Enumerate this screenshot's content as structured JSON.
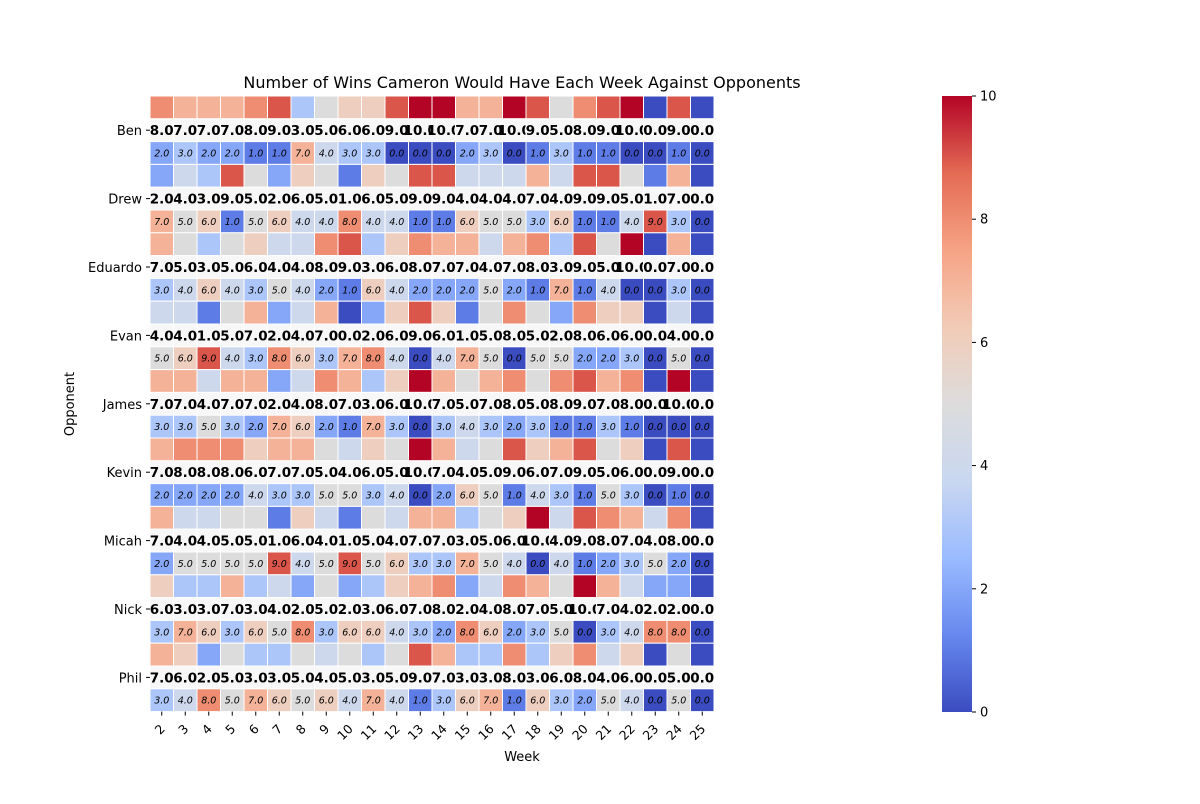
{
  "chart_data": {
    "type": "heatmap",
    "title": "Number of Wins Cameron Would Have Each Week Against Opponents",
    "xlabel": "Week",
    "ylabel": "Opponent",
    "weeks": [
      "2",
      "3",
      "4",
      "5",
      "6",
      "7",
      "8",
      "9",
      "10",
      "11",
      "12",
      "13",
      "14",
      "15",
      "16",
      "17",
      "18",
      "19",
      "20",
      "21",
      "22",
      "23",
      "24",
      "25"
    ],
    "opponents": [
      "Ben",
      "Drew",
      "Eduardo",
      "Evan",
      "James",
      "Kevin",
      "Micah",
      "Nick",
      "Phil"
    ],
    "colorbar": {
      "min": 0,
      "max": 10,
      "ticks": [
        "0",
        "2",
        "4",
        "6",
        "8",
        "10"
      ],
      "colormap": "coolwarm"
    },
    "colormap_stops": [
      "#3b4cc0",
      "#6788ee",
      "#9abbff",
      "#c9d7f0",
      "#dddcdc",
      "#f2cbb7",
      "#f6a385",
      "#e36b54",
      "#b40426"
    ],
    "wins": [
      [
        "8.0",
        "7.0",
        "7.0",
        "7.0",
        "8.0",
        "9.0",
        "3.0",
        "5.0",
        "6.0",
        "6.0",
        "9.0",
        "10.0",
        "10.0",
        "7.0",
        "7.0",
        "10.0",
        "9.0",
        "5.0",
        "8.0",
        "9.0",
        "10.0",
        "0.0",
        "9.0",
        "0.0"
      ],
      [
        "2.0",
        "4.0",
        "3.0",
        "9.0",
        "5.0",
        "2.0",
        "6.0",
        "5.0",
        "1.0",
        "6.0",
        "5.0",
        "9.0",
        "9.0",
        "4.0",
        "4.0",
        "4.0",
        "7.0",
        "4.0",
        "9.0",
        "9.0",
        "5.0",
        "1.0",
        "7.0",
        "0.0"
      ],
      [
        "7.0",
        "5.0",
        "3.0",
        "5.0",
        "6.0",
        "4.0",
        "4.0",
        "8.0",
        "9.0",
        "3.0",
        "6.0",
        "8.0",
        "7.0",
        "7.0",
        "4.0",
        "7.0",
        "8.0",
        "3.0",
        "9.0",
        "5.0",
        "10.0",
        "0.0",
        "7.0",
        "0.0"
      ],
      [
        "4.0",
        "4.0",
        "1.0",
        "5.0",
        "7.0",
        "2.0",
        "4.0",
        "7.0",
        "0.0",
        "2.0",
        "6.0",
        "9.0",
        "6.0",
        "1.0",
        "5.0",
        "8.0",
        "5.0",
        "2.0",
        "8.0",
        "6.0",
        "6.0",
        "0.0",
        "4.0",
        "0.0"
      ],
      [
        "7.0",
        "7.0",
        "4.0",
        "7.0",
        "7.0",
        "2.0",
        "4.0",
        "8.0",
        "7.0",
        "3.0",
        "6.0",
        "10.0",
        "7.0",
        "5.0",
        "7.0",
        "8.0",
        "5.0",
        "8.0",
        "9.0",
        "7.0",
        "8.0",
        "0.0",
        "10.0",
        "0.0"
      ],
      [
        "7.0",
        "8.0",
        "8.0",
        "8.0",
        "6.0",
        "7.0",
        "7.0",
        "5.0",
        "4.0",
        "6.0",
        "5.0",
        "10.0",
        "7.0",
        "4.0",
        "5.0",
        "9.0",
        "6.0",
        "7.0",
        "9.0",
        "5.0",
        "6.0",
        "0.0",
        "9.0",
        "0.0"
      ],
      [
        "7.0",
        "4.0",
        "4.0",
        "5.0",
        "5.0",
        "1.0",
        "6.0",
        "4.0",
        "1.0",
        "5.0",
        "4.0",
        "7.0",
        "7.0",
        "3.0",
        "5.0",
        "6.0",
        "10.0",
        "4.0",
        "9.0",
        "8.0",
        "7.0",
        "4.0",
        "8.0",
        "0.0"
      ],
      [
        "6.0",
        "3.0",
        "3.0",
        "7.0",
        "3.0",
        "4.0",
        "2.0",
        "5.0",
        "2.0",
        "3.0",
        "6.0",
        "7.0",
        "8.0",
        "2.0",
        "4.0",
        "8.0",
        "7.0",
        "5.0",
        "10.0",
        "7.0",
        "4.0",
        "2.0",
        "2.0",
        "0.0"
      ],
      [
        "7.0",
        "6.0",
        "2.0",
        "5.0",
        "3.0",
        "3.0",
        "5.0",
        "4.0",
        "5.0",
        "3.0",
        "5.0",
        "9.0",
        "7.0",
        "3.0",
        "3.0",
        "8.0",
        "3.0",
        "6.0",
        "8.0",
        "4.0",
        "6.0",
        "0.0",
        "5.0",
        "0.0"
      ]
    ],
    "losses": [
      [
        "2.0",
        "3.0",
        "2.0",
        "2.0",
        "1.0",
        "1.0",
        "7.0",
        "4.0",
        "3.0",
        "3.0",
        "0.0",
        "0.0",
        "0.0",
        "2.0",
        "3.0",
        "0.0",
        "1.0",
        "3.0",
        "1.0",
        "1.0",
        "0.0",
        "0.0",
        "1.0",
        "0.0"
      ],
      [
        "7.0",
        "5.0",
        "6.0",
        "1.0",
        "5.0",
        "6.0",
        "4.0",
        "4.0",
        "8.0",
        "4.0",
        "4.0",
        "1.0",
        "1.0",
        "6.0",
        "5.0",
        "5.0",
        "3.0",
        "6.0",
        "1.0",
        "1.0",
        "4.0",
        "9.0",
        "3.0",
        "0.0"
      ],
      [
        "3.0",
        "4.0",
        "6.0",
        "4.0",
        "3.0",
        "5.0",
        "4.0",
        "2.0",
        "1.0",
        "6.0",
        "4.0",
        "2.0",
        "2.0",
        "2.0",
        "5.0",
        "2.0",
        "1.0",
        "7.0",
        "1.0",
        "4.0",
        "0.0",
        "0.0",
        "3.0",
        "0.0"
      ],
      [
        "5.0",
        "6.0",
        "9.0",
        "4.0",
        "3.0",
        "8.0",
        "6.0",
        "3.0",
        "7.0",
        "8.0",
        "4.0",
        "0.0",
        "4.0",
        "7.0",
        "5.0",
        "0.0",
        "5.0",
        "5.0",
        "2.0",
        "2.0",
        "3.0",
        "0.0",
        "5.0",
        "0.0"
      ],
      [
        "3.0",
        "3.0",
        "5.0",
        "3.0",
        "2.0",
        "7.0",
        "6.0",
        "2.0",
        "1.0",
        "7.0",
        "3.0",
        "0.0",
        "3.0",
        "4.0",
        "3.0",
        "2.0",
        "3.0",
        "1.0",
        "1.0",
        "3.0",
        "1.0",
        "0.0",
        "0.0",
        "0.0"
      ],
      [
        "2.0",
        "2.0",
        "2.0",
        "2.0",
        "4.0",
        "3.0",
        "3.0",
        "5.0",
        "5.0",
        "3.0",
        "4.0",
        "0.0",
        "2.0",
        "6.0",
        "5.0",
        "1.0",
        "4.0",
        "3.0",
        "1.0",
        "5.0",
        "3.0",
        "0.0",
        "1.0",
        "0.0"
      ],
      [
        "2.0",
        "5.0",
        "5.0",
        "5.0",
        "5.0",
        "9.0",
        "4.0",
        "5.0",
        "9.0",
        "5.0",
        "6.0",
        "3.0",
        "3.0",
        "7.0",
        "5.0",
        "4.0",
        "0.0",
        "4.0",
        "1.0",
        "2.0",
        "3.0",
        "5.0",
        "2.0",
        "0.0"
      ],
      [
        "3.0",
        "7.0",
        "6.0",
        "3.0",
        "6.0",
        "5.0",
        "8.0",
        "3.0",
        "6.0",
        "6.0",
        "4.0",
        "3.0",
        "2.0",
        "8.0",
        "6.0",
        "2.0",
        "3.0",
        "5.0",
        "0.0",
        "3.0",
        "4.0",
        "8.0",
        "8.0",
        "0.0"
      ],
      [
        "3.0",
        "4.0",
        "8.0",
        "5.0",
        "7.0",
        "6.0",
        "5.0",
        "6.0",
        "4.0",
        "7.0",
        "4.0",
        "1.0",
        "3.0",
        "6.0",
        "7.0",
        "1.0",
        "6.0",
        "3.0",
        "2.0",
        "5.0",
        "4.0",
        "0.0",
        "5.0",
        "0.0"
      ]
    ]
  }
}
